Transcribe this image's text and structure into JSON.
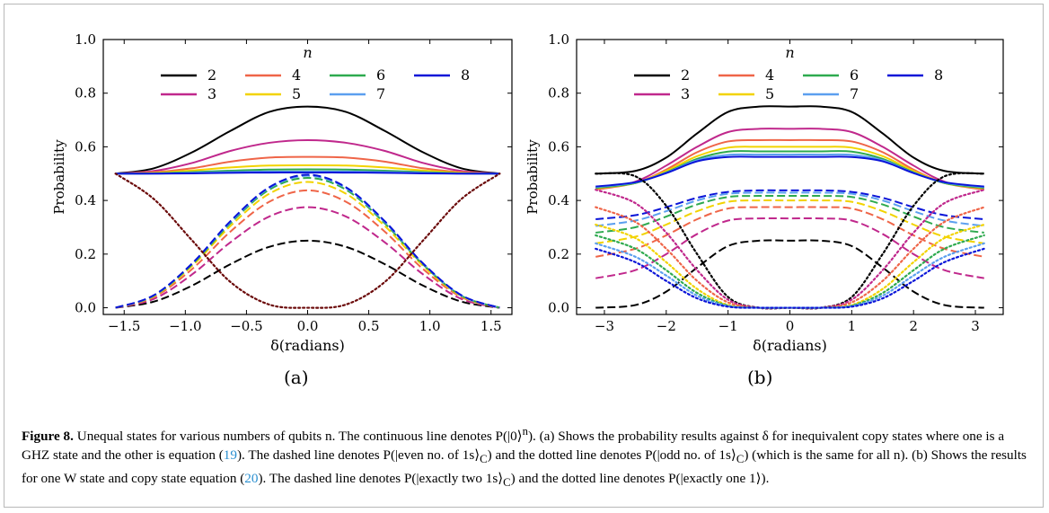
{
  "figure": {
    "panel_labels": [
      "(a)",
      "(b)"
    ],
    "caption": {
      "figure_label": "Figure 8.",
      "text_1": "Unequal states for various numbers of qubits n. The continuous line denotes P(|0⟩",
      "sup_n": "n",
      "text_2": "). (a) Shows the probability results against δ for inequivalent copy states where one is a GHZ state and the other is equation (",
      "ref_19": "19",
      "text_3": "). The dashed line denotes P(|even no. of 1s⟩",
      "sub_c1": "C",
      "text_4": ") and the dotted line denotes P(|odd no. of 1s⟩",
      "sub_c2": "C",
      "text_5": ") (which is the same for all n). (b) Shows the results for one W state and copy state equation (",
      "ref_20": "20",
      "text_6": "). The dashed line denotes P(|exactly two 1s⟩",
      "sub_c3": "C",
      "text_7": ") and the dotted line denotes P(|exactly one 1⟩)."
    }
  },
  "colors": {
    "2": "#000000",
    "3": "#c0288c",
    "4": "#ef6548",
    "5": "#f2d300",
    "6": "#2eaa4f",
    "7": "#5b9fef",
    "8": "#0a14d8",
    "odd_a": "#6b0a0a"
  },
  "chart_data": [
    {
      "type": "line",
      "panel": "(a)",
      "xlabel": "δ(radians)",
      "ylabel": "Probability",
      "legend_title": "n",
      "legend_placement": "top",
      "xlim": [
        -1.6708,
        1.6708
      ],
      "ylim": [
        -0.025,
        1.0
      ],
      "xticks": [
        -1.5,
        -1.0,
        -0.5,
        0.0,
        0.5,
        1.0,
        1.5
      ],
      "xtick_labels": [
        "−1.5",
        "−1.0",
        "−0.5",
        "0.0",
        "0.5",
        "1.0",
        "1.5"
      ],
      "yticks": [
        0.0,
        0.2,
        0.4,
        0.6,
        0.8,
        1.0
      ],
      "ytick_labels": [
        "0.0",
        "0.2",
        "0.4",
        "0.6",
        "0.8",
        "1.0"
      ],
      "x": [
        -1.5708,
        -1.2566,
        -0.9425,
        -0.6283,
        -0.3142,
        0.0,
        0.3142,
        0.6283,
        0.9425,
        1.2566,
        1.5708
      ],
      "series": [
        {
          "name": "2",
          "style": "solid",
          "values": [
            0.5,
            0.52,
            0.58,
            0.66,
            0.73,
            0.75,
            0.73,
            0.66,
            0.58,
            0.52,
            0.5
          ]
        },
        {
          "name": "3",
          "style": "solid",
          "values": [
            0.5,
            0.51,
            0.54,
            0.585,
            0.615,
            0.625,
            0.615,
            0.585,
            0.54,
            0.51,
            0.5
          ]
        },
        {
          "name": "4",
          "style": "solid",
          "values": [
            0.5,
            0.505,
            0.52,
            0.545,
            0.56,
            0.5625,
            0.56,
            0.545,
            0.52,
            0.505,
            0.5
          ]
        },
        {
          "name": "5",
          "style": "solid",
          "values": [
            0.5,
            0.503,
            0.512,
            0.523,
            0.53,
            0.531,
            0.53,
            0.523,
            0.512,
            0.503,
            0.5
          ]
        },
        {
          "name": "6",
          "style": "solid",
          "values": [
            0.5,
            0.501,
            0.506,
            0.511,
            0.515,
            0.516,
            0.515,
            0.511,
            0.506,
            0.501,
            0.5
          ]
        },
        {
          "name": "7",
          "style": "solid",
          "values": [
            0.5,
            0.5,
            0.503,
            0.506,
            0.508,
            0.508,
            0.508,
            0.506,
            0.503,
            0.5,
            0.5
          ]
        },
        {
          "name": "8",
          "style": "solid",
          "values": [
            0.5,
            0.5,
            0.501,
            0.503,
            0.504,
            0.504,
            0.504,
            0.503,
            0.501,
            0.5,
            0.5
          ]
        },
        {
          "name": "2",
          "style": "dashed",
          "values": [
            0.0,
            0.023,
            0.083,
            0.163,
            0.227,
            0.25,
            0.227,
            0.163,
            0.083,
            0.023,
            0.0
          ]
        },
        {
          "name": "3",
          "style": "dashed",
          "values": [
            0.0,
            0.033,
            0.125,
            0.245,
            0.34,
            0.375,
            0.34,
            0.245,
            0.125,
            0.033,
            0.0
          ]
        },
        {
          "name": "4",
          "style": "dashed",
          "values": [
            0.0,
            0.04,
            0.145,
            0.285,
            0.395,
            0.4375,
            0.395,
            0.285,
            0.145,
            0.04,
            0.0
          ]
        },
        {
          "name": "5",
          "style": "dashed",
          "values": [
            0.0,
            0.043,
            0.157,
            0.306,
            0.425,
            0.469,
            0.425,
            0.306,
            0.157,
            0.043,
            0.0
          ]
        },
        {
          "name": "6",
          "style": "dashed",
          "values": [
            0.0,
            0.045,
            0.162,
            0.316,
            0.44,
            0.484,
            0.44,
            0.316,
            0.162,
            0.045,
            0.0
          ]
        },
        {
          "name": "7",
          "style": "dashed",
          "values": [
            0.0,
            0.046,
            0.165,
            0.321,
            0.446,
            0.492,
            0.446,
            0.321,
            0.165,
            0.046,
            0.0
          ]
        },
        {
          "name": "8",
          "style": "dashed",
          "values": [
            0.0,
            0.047,
            0.166,
            0.324,
            0.449,
            0.496,
            0.449,
            0.324,
            0.166,
            0.047,
            0.0
          ]
        },
        {
          "name": "odd",
          "style": "dotted",
          "values": [
            0.5,
            0.405,
            0.25,
            0.095,
            0.012,
            0.0,
            0.012,
            0.095,
            0.25,
            0.405,
            0.5
          ]
        }
      ]
    },
    {
      "type": "line",
      "panel": "(b)",
      "xlabel": "δ(radians)",
      "ylabel": "Probability",
      "legend_title": "n",
      "legend_placement": "top",
      "xlim": [
        -3.45,
        3.45
      ],
      "ylim": [
        -0.025,
        1.0
      ],
      "xticks": [
        -3,
        -2,
        -1,
        0,
        1,
        2,
        3
      ],
      "xtick_labels": [
        "−3",
        "−2",
        "−1",
        "0",
        "1",
        "2",
        "3"
      ],
      "yticks": [
        0.0,
        0.2,
        0.4,
        0.6,
        0.8,
        1.0
      ],
      "ytick_labels": [
        "0.0",
        "0.2",
        "0.4",
        "0.6",
        "0.8",
        "1.0"
      ],
      "x": [
        -3.1416,
        -2.5,
        -2.0,
        -1.5,
        -1.0,
        -0.5,
        0.0,
        0.5,
        1.0,
        1.5,
        2.0,
        2.5,
        3.1416
      ],
      "series": [
        {
          "name": "2",
          "style": "solid",
          "values": [
            0.5,
            0.51,
            0.56,
            0.65,
            0.73,
            0.75,
            0.75,
            0.75,
            0.73,
            0.65,
            0.56,
            0.51,
            0.5
          ]
        },
        {
          "name": "3",
          "style": "solid",
          "values": [
            0.44,
            0.47,
            0.53,
            0.6,
            0.655,
            0.667,
            0.667,
            0.667,
            0.655,
            0.6,
            0.53,
            0.47,
            0.44
          ]
        },
        {
          "name": "4",
          "style": "solid",
          "values": [
            0.44,
            0.465,
            0.515,
            0.58,
            0.62,
            0.625,
            0.625,
            0.625,
            0.62,
            0.58,
            0.515,
            0.465,
            0.44
          ]
        },
        {
          "name": "5",
          "style": "solid",
          "values": [
            0.445,
            0.465,
            0.51,
            0.565,
            0.597,
            0.6,
            0.6,
            0.6,
            0.597,
            0.565,
            0.51,
            0.465,
            0.445
          ]
        },
        {
          "name": "6",
          "style": "solid",
          "values": [
            0.447,
            0.465,
            0.505,
            0.555,
            0.582,
            0.583,
            0.583,
            0.583,
            0.582,
            0.555,
            0.505,
            0.465,
            0.447
          ]
        },
        {
          "name": "7",
          "style": "solid",
          "values": [
            0.45,
            0.467,
            0.503,
            0.55,
            0.57,
            0.571,
            0.571,
            0.571,
            0.57,
            0.55,
            0.503,
            0.467,
            0.45
          ]
        },
        {
          "name": "8",
          "style": "solid",
          "values": [
            0.452,
            0.468,
            0.502,
            0.546,
            0.562,
            0.5625,
            0.5625,
            0.5625,
            0.562,
            0.546,
            0.502,
            0.468,
            0.452
          ]
        },
        {
          "name": "2",
          "style": "dashed",
          "values": [
            0.0,
            0.01,
            0.06,
            0.15,
            0.23,
            0.25,
            0.25,
            0.25,
            0.23,
            0.15,
            0.06,
            0.01,
            0.0
          ]
        },
        {
          "name": "3",
          "style": "dashed",
          "values": [
            0.11,
            0.14,
            0.2,
            0.275,
            0.325,
            0.333,
            0.333,
            0.333,
            0.325,
            0.275,
            0.2,
            0.14,
            0.11
          ]
        },
        {
          "name": "4",
          "style": "dashed",
          "values": [
            0.19,
            0.22,
            0.27,
            0.33,
            0.37,
            0.375,
            0.375,
            0.375,
            0.37,
            0.33,
            0.27,
            0.22,
            0.19
          ]
        },
        {
          "name": "5",
          "style": "dashed",
          "values": [
            0.24,
            0.265,
            0.31,
            0.36,
            0.395,
            0.4,
            0.4,
            0.4,
            0.395,
            0.36,
            0.31,
            0.265,
            0.24
          ]
        },
        {
          "name": "6",
          "style": "dashed",
          "values": [
            0.28,
            0.3,
            0.34,
            0.385,
            0.413,
            0.417,
            0.417,
            0.417,
            0.413,
            0.385,
            0.34,
            0.3,
            0.28
          ]
        },
        {
          "name": "7",
          "style": "dashed",
          "values": [
            0.305,
            0.325,
            0.36,
            0.4,
            0.425,
            0.429,
            0.429,
            0.429,
            0.425,
            0.4,
            0.36,
            0.325,
            0.305
          ]
        },
        {
          "name": "8",
          "style": "dashed",
          "values": [
            0.33,
            0.345,
            0.375,
            0.41,
            0.432,
            0.4375,
            0.4375,
            0.4375,
            0.432,
            0.41,
            0.375,
            0.345,
            0.33
          ]
        },
        {
          "name": "2",
          "style": "dotted",
          "values": [
            0.5,
            0.49,
            0.38,
            0.2,
            0.04,
            0.0,
            0.0,
            0.0,
            0.04,
            0.2,
            0.38,
            0.49,
            0.5
          ]
        },
        {
          "name": "3",
          "style": "dotted",
          "values": [
            0.44,
            0.39,
            0.28,
            0.14,
            0.03,
            0.0,
            0.0,
            0.0,
            0.03,
            0.14,
            0.28,
            0.39,
            0.44
          ]
        },
        {
          "name": "4",
          "style": "dotted",
          "values": [
            0.375,
            0.32,
            0.22,
            0.1,
            0.02,
            0.0,
            0.0,
            0.0,
            0.02,
            0.1,
            0.22,
            0.32,
            0.375
          ]
        },
        {
          "name": "5",
          "style": "dotted",
          "values": [
            0.31,
            0.26,
            0.17,
            0.07,
            0.01,
            0.0,
            0.0,
            0.0,
            0.01,
            0.07,
            0.17,
            0.26,
            0.31
          ]
        },
        {
          "name": "6",
          "style": "dotted",
          "values": [
            0.27,
            0.22,
            0.14,
            0.055,
            0.008,
            0.0,
            0.0,
            0.0,
            0.008,
            0.055,
            0.14,
            0.22,
            0.27
          ]
        },
        {
          "name": "7",
          "style": "dotted",
          "values": [
            0.24,
            0.19,
            0.12,
            0.045,
            0.006,
            0.0,
            0.0,
            0.0,
            0.006,
            0.045,
            0.12,
            0.19,
            0.24
          ]
        },
        {
          "name": "8",
          "style": "dotted",
          "values": [
            0.22,
            0.17,
            0.1,
            0.035,
            0.004,
            0.0,
            0.0,
            0.0,
            0.004,
            0.035,
            0.1,
            0.17,
            0.22
          ]
        }
      ]
    }
  ]
}
